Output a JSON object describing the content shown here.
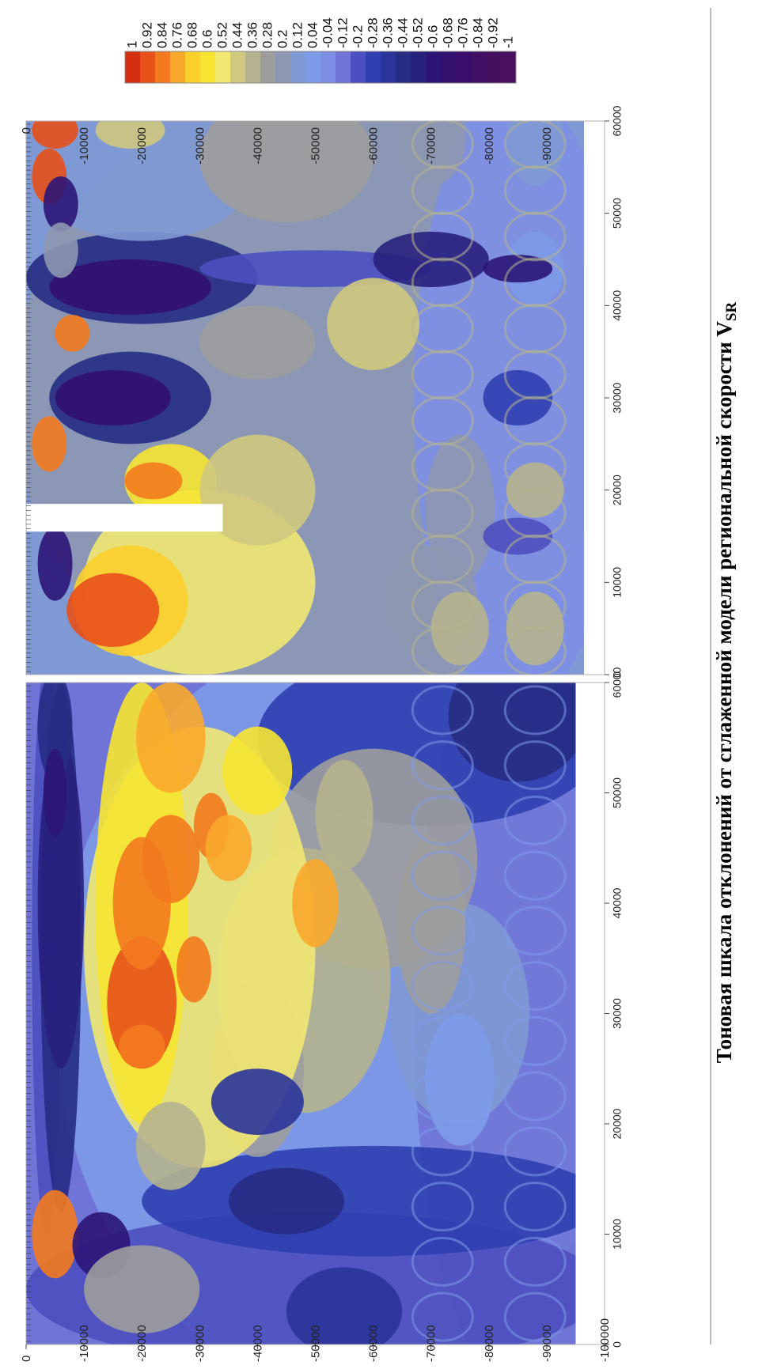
{
  "caption": {
    "text": "Тоновая шкала отклонений от сглаженной модели региональной скорости V",
    "subscript": "SR"
  },
  "colorbar": {
    "labels": [
      "1",
      "0.92",
      "0.84",
      "0.76",
      "0.68",
      "0.6",
      "0.52",
      "0.44",
      "0.36",
      "0.28",
      "0.2",
      "0.12",
      "0.04",
      "-0.04",
      "-0.12",
      "-0.2",
      "-0.28",
      "-0.36",
      "-0.44",
      "-0.52",
      "-0.6",
      "-0.68",
      "-0.76",
      "-0.84",
      "-0.92",
      "-1"
    ],
    "colors": [
      "#d32f10",
      "#e8501a",
      "#f37a1f",
      "#f9a82b",
      "#fbcf2c",
      "#f7e532",
      "#f1e872",
      "#cfc87e",
      "#b5b48e",
      "#9d9d9d",
      "#8e97b1",
      "#7f99d4",
      "#7d9be8",
      "#7e8fe6",
      "#6f74d6",
      "#4c4fbf",
      "#2f3fb0",
      "#2a349a",
      "#262c84",
      "#28207d",
      "#2c1577",
      "#32116f",
      "#3a0f6c",
      "#400f66",
      "#461060",
      "#4a1060"
    ]
  },
  "chart_data": [
    {
      "type": "heatmap",
      "title": "",
      "x_ticks": [
        0,
        10000,
        20000,
        30000,
        40000,
        50000,
        60000
      ],
      "y_ticks": [
        0,
        -10000,
        -20000,
        -30000,
        -40000,
        -50000,
        -60000,
        -70000,
        -80000,
        -90000,
        -100000
      ],
      "xlim": [
        0,
        60000
      ],
      "ylim": [
        -100000,
        0
      ],
      "color_scale": [
        -1,
        1
      ]
    },
    {
      "type": "heatmap",
      "title": "",
      "x_ticks": [
        0,
        10000,
        20000,
        30000,
        40000,
        50000,
        60000
      ],
      "y_ticks": [
        0,
        -10000,
        -20000,
        -30000,
        -40000,
        -50000,
        -60000,
        -70000,
        -80000,
        -90000
      ],
      "xlim": [
        0,
        60000
      ],
      "ylim": [
        -100000,
        0
      ],
      "color_scale": [
        -1,
        1
      ]
    }
  ]
}
